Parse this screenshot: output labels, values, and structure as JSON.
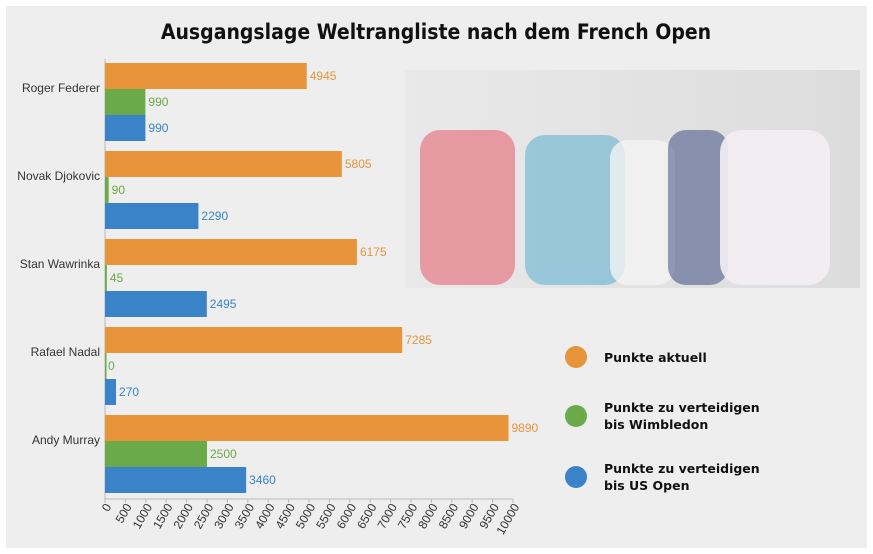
{
  "chart_data": {
    "type": "hbar",
    "title": "Ausgangslage Weltrangliste nach dem French Open",
    "categories": [
      "Roger Federer",
      "Novak Djokovic",
      "Stan Wawrinka",
      "Rafael Nadal",
      "Andy Murray"
    ],
    "series": [
      {
        "name": "Punkte aktuell",
        "color": "#e8943a",
        "values": [
          4945,
          5805,
          6175,
          7285,
          9890
        ]
      },
      {
        "name": "Punkte zu verteidigen bis Wimbledon",
        "color": "#6aaa48",
        "values": [
          990,
          90,
          45,
          0,
          2500
        ]
      },
      {
        "name": "Punkte zu verteidigen bis US Open",
        "color": "#3a83c8",
        "values": [
          990,
          2290,
          2495,
          270,
          3460
        ]
      }
    ],
    "xlim": [
      0,
      10000
    ],
    "xticks": [
      0,
      500,
      1000,
      1500,
      2000,
      2500,
      3000,
      3500,
      4000,
      4500,
      5000,
      5500,
      6000,
      6500,
      7000,
      7500,
      8000,
      8500,
      9000,
      9500,
      10000
    ],
    "legend": "right"
  }
}
